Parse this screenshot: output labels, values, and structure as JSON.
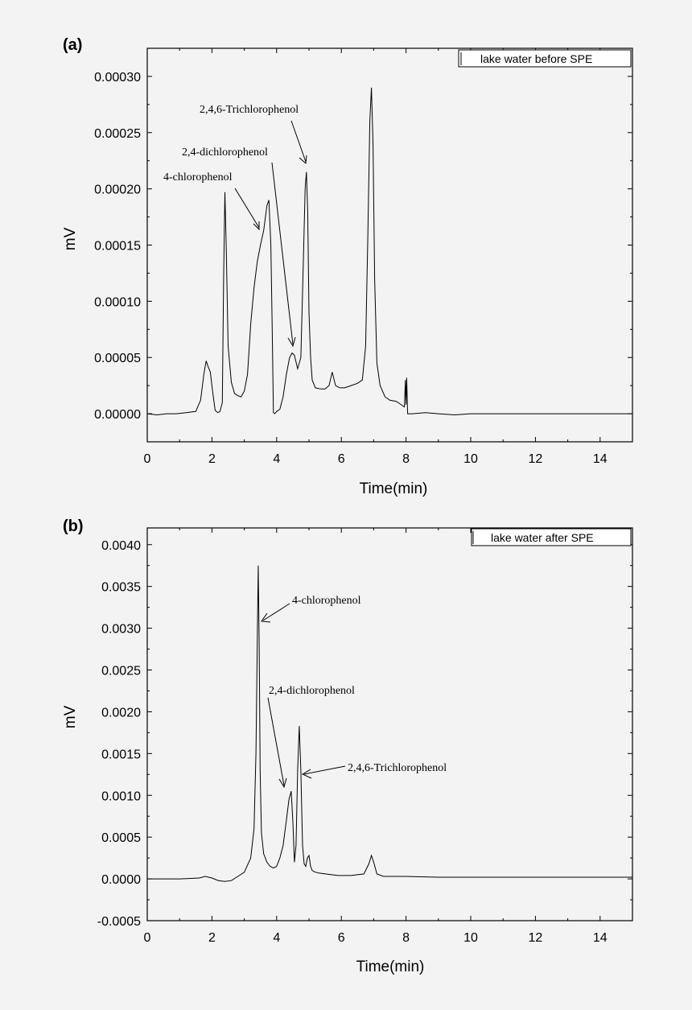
{
  "chart_data": [
    {
      "panel_label": "(a)",
      "type": "line",
      "legend": "lake water before SPE",
      "legend_position": "top-right",
      "xlabel": "Time(min)",
      "ylabel": "mV",
      "xlim": [
        0,
        15
      ],
      "ylim": [
        -2.5e-05,
        0.000325
      ],
      "x_ticks": [
        0,
        2,
        4,
        6,
        8,
        10,
        12,
        14
      ],
      "x_tick_labels": [
        "0",
        "2",
        "4",
        "6",
        "8",
        "10",
        "12",
        "14"
      ],
      "y_ticks": [
        0.0,
        5e-05,
        0.0001,
        0.00015,
        0.0002,
        0.00025,
        0.0003
      ],
      "y_tick_labels": [
        "0.00000",
        "0.00005",
        "0.00010",
        "0.00015",
        "0.00020",
        "0.00025",
        "0.00030"
      ],
      "grid": false,
      "series": [
        {
          "x": [
            0,
            0.3,
            0.6,
            0.9,
            1.2,
            1.5,
            1.65,
            1.75,
            1.82,
            1.88,
            1.95,
            2.02,
            2.1,
            2.18,
            2.25,
            2.32,
            2.36,
            2.4,
            2.44,
            2.5,
            2.6,
            2.7,
            2.8,
            2.9,
            3.0,
            3.1,
            3.2,
            3.3,
            3.4,
            3.5,
            3.6,
            3.7,
            3.76,
            3.82,
            3.86,
            3.9,
            3.94,
            4.0,
            4.1,
            4.2,
            4.3,
            4.4,
            4.48,
            4.55,
            4.65,
            4.75,
            4.82,
            4.88,
            4.92,
            4.96,
            5.0,
            5.05,
            5.1,
            5.2,
            5.35,
            5.5,
            5.62,
            5.72,
            5.82,
            5.95,
            6.1,
            6.3,
            6.5,
            6.65,
            6.75,
            6.82,
            6.88,
            6.93,
            6.98,
            7.03,
            7.1,
            7.2,
            7.35,
            7.5,
            7.7,
            7.85,
            7.95,
            7.98,
            8.0,
            8.02,
            8.05,
            8.2,
            8.6,
            9.0,
            9.5,
            10,
            11,
            12,
            13,
            14,
            15
          ],
          "y": [
            0.0,
            -1e-06,
            0.0,
            0.0,
            1e-06,
            2e-06,
            1.2e-05,
            3.5e-05,
            4.7e-05,
            4.2e-05,
            3.7e-05,
            2e-05,
            3e-06,
            1e-06,
            2e-06,
            1e-05,
            0.00012,
            0.000197,
            0.00015,
            6e-05,
            2.8e-05,
            1.8e-05,
            1.6e-05,
            1.5e-05,
            2e-05,
            3.5e-05,
            8e-05,
            0.000112,
            0.000135,
            0.00015,
            0.000163,
            0.000185,
            0.00019,
            0.00015,
            8e-05,
            1e-06,
            0.0,
            2e-06,
            4e-06,
            1.5e-05,
            3.5e-05,
            5e-05,
            5.4e-05,
            5.2e-05,
            4e-05,
            5e-05,
            0.00013,
            0.0002,
            0.000215,
            0.00018,
            9e-05,
            5e-05,
            3e-05,
            2.3e-05,
            2.2e-05,
            2.2e-05,
            2.5e-05,
            3.7e-05,
            2.5e-05,
            2.3e-05,
            2.3e-05,
            2.5e-05,
            2.7e-05,
            3e-05,
            6e-05,
            0.00016,
            0.00026,
            0.00029,
            0.00024,
            0.00012,
            4.5e-05,
            2.5e-05,
            1.5e-05,
            1.2e-05,
            1.1e-05,
            8e-06,
            6e-06,
            3e-05,
            8e-06,
            3.2e-05,
            0.0,
            0.0,
            1e-06,
            0.0,
            -1e-06,
            0.0,
            0.0,
            0.0,
            0.0,
            0.0,
            0.0
          ]
        }
      ],
      "annotations": [
        {
          "text": "2,4,6-Trichlorophenol",
          "x": 4.9,
          "y": 0.000222
        },
        {
          "text": "2,4-dichlorophenol",
          "x": 4.45,
          "y": 5.7e-05
        },
        {
          "text": "4-chlorophenol",
          "x": 3.48,
          "y": 0.000162
        }
      ]
    },
    {
      "panel_label": "(b)",
      "type": "line",
      "legend": "lake water after SPE",
      "legend_position": "top-right",
      "xlabel": "Time(min)",
      "ylabel": "mV",
      "xlim": [
        0,
        15
      ],
      "ylim": [
        -0.0005,
        0.0042
      ],
      "x_ticks": [
        0,
        2,
        4,
        6,
        8,
        10,
        12,
        14
      ],
      "x_tick_labels": [
        "0",
        "2",
        "4",
        "6",
        "8",
        "10",
        "12",
        "14"
      ],
      "y_ticks": [
        -0.0005,
        0.0,
        0.0005,
        0.001,
        0.0015,
        0.002,
        0.0025,
        0.003,
        0.0035,
        0.004
      ],
      "y_tick_labels": [
        "-0.0005",
        "0.0000",
        "0.0005",
        "0.0010",
        "0.0015",
        "0.0020",
        "0.0025",
        "0.0030",
        "0.0035",
        "0.0040"
      ],
      "grid": false,
      "series": [
        {
          "x": [
            0,
            1.0,
            1.6,
            1.8,
            2.0,
            2.2,
            2.4,
            2.6,
            2.8,
            3.0,
            3.2,
            3.3,
            3.36,
            3.4,
            3.43,
            3.46,
            3.49,
            3.53,
            3.6,
            3.7,
            3.8,
            3.9,
            4.0,
            4.1,
            4.2,
            4.3,
            4.38,
            4.45,
            4.5,
            4.55,
            4.6,
            4.65,
            4.7,
            4.75,
            4.8,
            4.85,
            4.9,
            4.95,
            5.0,
            5.05,
            5.1,
            5.2,
            5.3,
            5.5,
            5.7,
            5.9,
            6.3,
            6.7,
            6.85,
            6.93,
            7.0,
            7.1,
            7.3,
            7.6,
            8.0,
            9.0,
            10,
            11,
            12,
            13,
            14,
            15
          ],
          "y": [
            0.0,
            0.0,
            1e-05,
            3e-05,
            1e-05,
            -2e-05,
            -3e-05,
            -2e-05,
            3e-05,
            8e-05,
            0.00025,
            0.0006,
            0.0015,
            0.0028,
            0.00375,
            0.0028,
            0.0013,
            0.00055,
            0.0003,
            0.0002,
            0.00015,
            0.00013,
            0.00015,
            0.00025,
            0.0004,
            0.0007,
            0.00095,
            0.00105,
            0.0007,
            0.0002,
            0.0004,
            0.0013,
            0.00183,
            0.0013,
            0.0004,
            0.00018,
            0.00015,
            0.00025,
            0.00028,
            0.00015,
            0.0001,
            8e-05,
            7e-05,
            6e-05,
            5e-05,
            4e-05,
            4e-05,
            6e-05,
            0.00018,
            0.00028,
            0.0002,
            6e-05,
            3e-05,
            3e-05,
            3e-05,
            2e-05,
            2e-05,
            2e-05,
            2e-05,
            2e-05,
            2e-05,
            2e-05
          ]
        }
      ],
      "annotations": [
        {
          "text": "4-chlorophenol",
          "x": 3.47,
          "y": 0.0031
        },
        {
          "text": "2,4-dichlorophenol",
          "x": 4.3,
          "y": 0.0011
        },
        {
          "text": "2,4,6-Trichlorophenol",
          "x": 4.8,
          "y": 0.00128
        }
      ]
    }
  ]
}
